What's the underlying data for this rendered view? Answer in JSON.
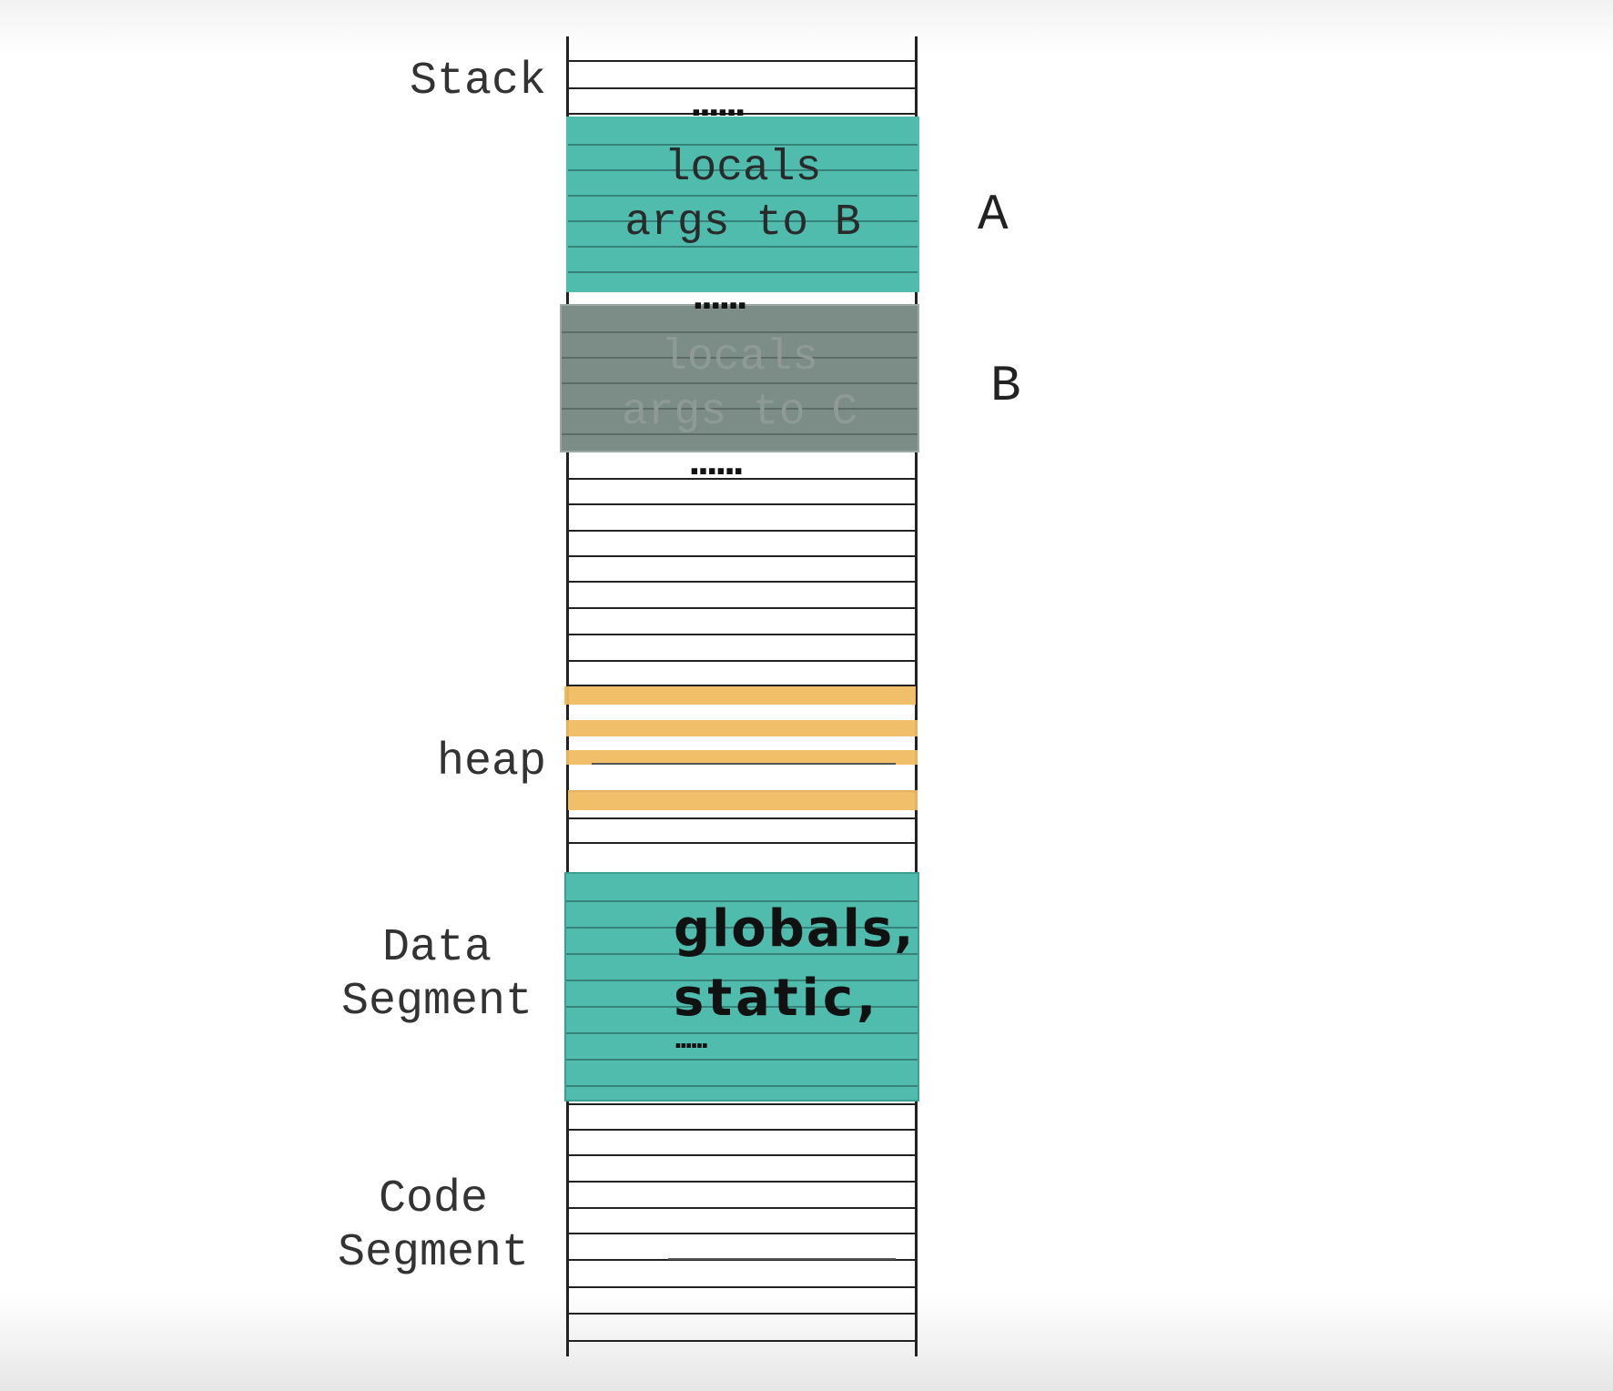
{
  "colors": {
    "active_frame": "#4fbcad",
    "inactive_frame": "#7c8c86",
    "heap_allocation": "#f0bc62",
    "grid_line": "#222222"
  },
  "segments": {
    "stack": "Stack",
    "heap": "heap",
    "data": "Data\nSegment",
    "code": "Code\nSegment"
  },
  "frames": {
    "a": {
      "tag": "A",
      "line1": "locals",
      "line2": "args to B"
    },
    "b": {
      "tag": "B",
      "line1": "locals",
      "line2": "args to C"
    }
  },
  "data_block": {
    "line1": "globals,",
    "line2": "static,",
    "ellipsis": "......"
  },
  "ellipsis": "......"
}
